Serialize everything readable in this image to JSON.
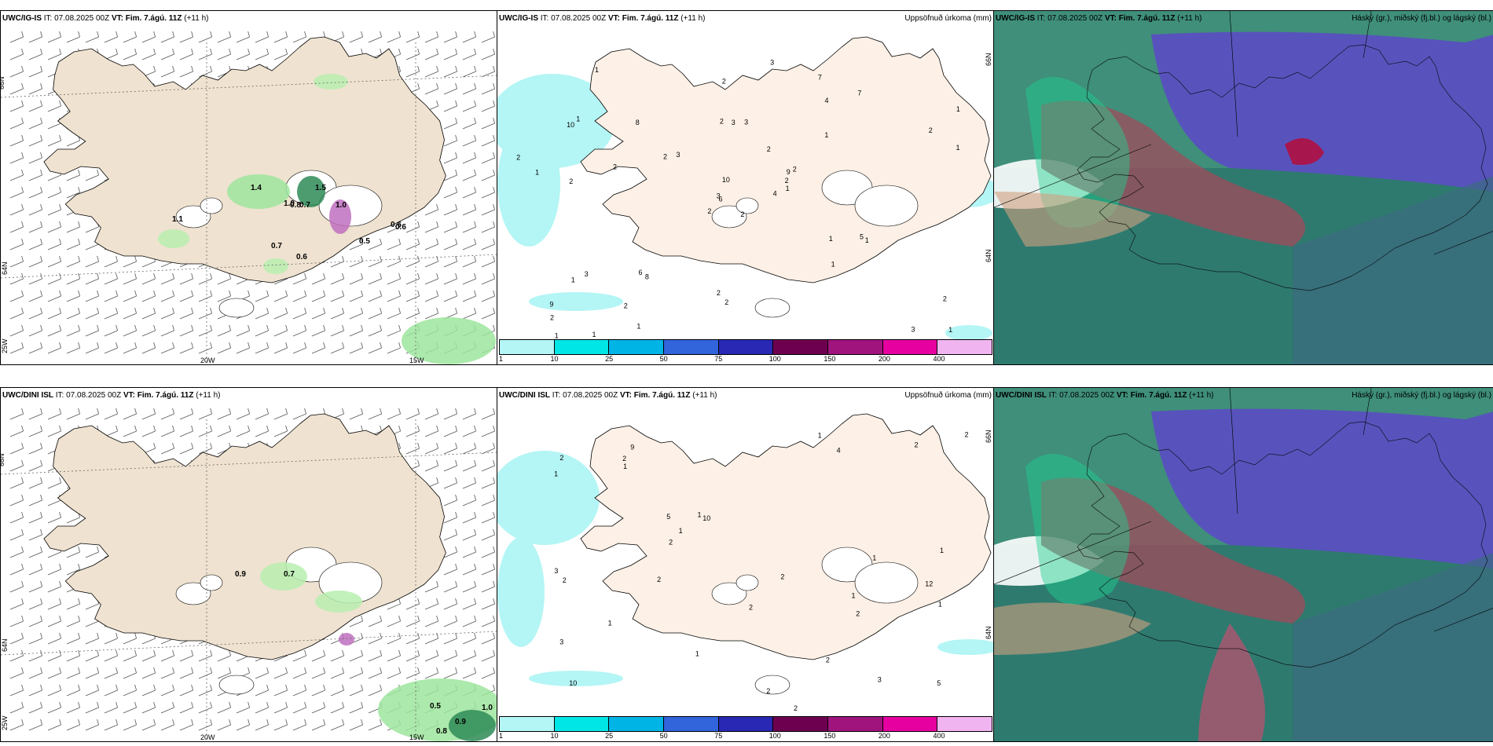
{
  "panels": [
    {
      "id": "tl",
      "model": "UWC/IG-IS",
      "it_label": "IT:",
      "it": "07.08.2025 00Z",
      "vt_label": "VT:",
      "vt": "Fim. 7.ágú. 11Z",
      "lead": "(+11 h)",
      "right": ""
    },
    {
      "id": "tm",
      "model": "UWC/IG-IS",
      "it_label": "IT:",
      "it": "07.08.2025 00Z",
      "vt_label": "VT:",
      "vt": "Fim. 7.ágú. 11Z",
      "lead": "(+11 h)",
      "right": "Uppsöfnuð úrkoma (mm)"
    },
    {
      "id": "tr",
      "model": "UWC/IG-IS",
      "it_label": "IT:",
      "it": "07.08.2025 00Z",
      "vt_label": "VT:",
      "vt": "Fim. 7.ágú. 11Z",
      "lead": "(+11 h)",
      "right": "Háský (gr.), miðský (fj.bl.) og lágský (bl.)"
    },
    {
      "id": "bl",
      "model": "UWC/DINI ISL",
      "it_label": "IT:",
      "it": "07.08.2025 00Z",
      "vt_label": "VT:",
      "vt": "Fim. 7.ágú. 11Z",
      "lead": "(+11 h)",
      "right": ""
    },
    {
      "id": "bm",
      "model": "UWC/DINI ISL",
      "it_label": "IT:",
      "it": "07.08.2025 00Z",
      "vt_label": "VT:",
      "vt": "Fim. 7.ágú. 11Z",
      "lead": "(+11 h)",
      "right": "Uppsöfnuð úrkoma (mm)"
    },
    {
      "id": "br",
      "model": "UWC/DINI ISL",
      "it_label": "IT:",
      "it": "07.08.2025 00Z",
      "vt_label": "VT:",
      "vt": "Fim. 7.ágú. 11Z",
      "lead": "(+11 h)",
      "right": "Háský (gr.), miðský (fj.bl.) og lágský (bl.)"
    }
  ],
  "grid_labels": {
    "lat66": "66N",
    "lat64": "64N",
    "lon25": "25W",
    "lon20": "20W",
    "lon15": "15W"
  },
  "colorbar": {
    "colors": [
      "#b4f5f5",
      "#00e6e6",
      "#00b4e6",
      "#3264dc",
      "#2828b4",
      "#6e0050",
      "#a0147e",
      "#e600a0",
      "#f0b4f0"
    ],
    "ticks": [
      "1",
      "10",
      "25",
      "50",
      "75",
      "100",
      "150",
      "200",
      "400"
    ]
  },
  "tl_values": [
    "1.4",
    "1.1",
    "1.0",
    "0.6",
    "0.8",
    "0.7",
    "0.6",
    "0.5",
    "0.6",
    "1.5",
    "1.0",
    "0.7"
  ],
  "bl_values": [
    "0.9",
    "0.7",
    "0.5",
    "0.9",
    "0.8",
    "1.0"
  ],
  "tm_values": [
    "2",
    "10",
    "6",
    "9",
    "9",
    "8",
    "7",
    "3",
    "4",
    "4",
    "1",
    "1",
    "2",
    "1",
    "2",
    "1",
    "1",
    "2",
    "2",
    "3",
    "3",
    "2",
    "2",
    "3",
    "2",
    "1",
    "1",
    "2",
    "1",
    "1",
    "1",
    "3",
    "2",
    "10",
    "8",
    "7",
    "6",
    "3",
    "2",
    "5",
    "3",
    "2",
    "2",
    "1",
    "1",
    "2",
    "2",
    "1",
    "2",
    "1",
    "1",
    "2"
  ],
  "bm_values": [
    "1",
    "12",
    "10",
    "9",
    "10",
    "3",
    "3",
    "4",
    "5",
    "2",
    "1",
    "3",
    "2",
    "5",
    "1",
    "1",
    "2",
    "2",
    "1",
    "1",
    "2",
    "2",
    "2",
    "1",
    "1",
    "2",
    "2",
    "2",
    "1",
    "1",
    "2",
    "2",
    "1",
    "2"
  ]
}
